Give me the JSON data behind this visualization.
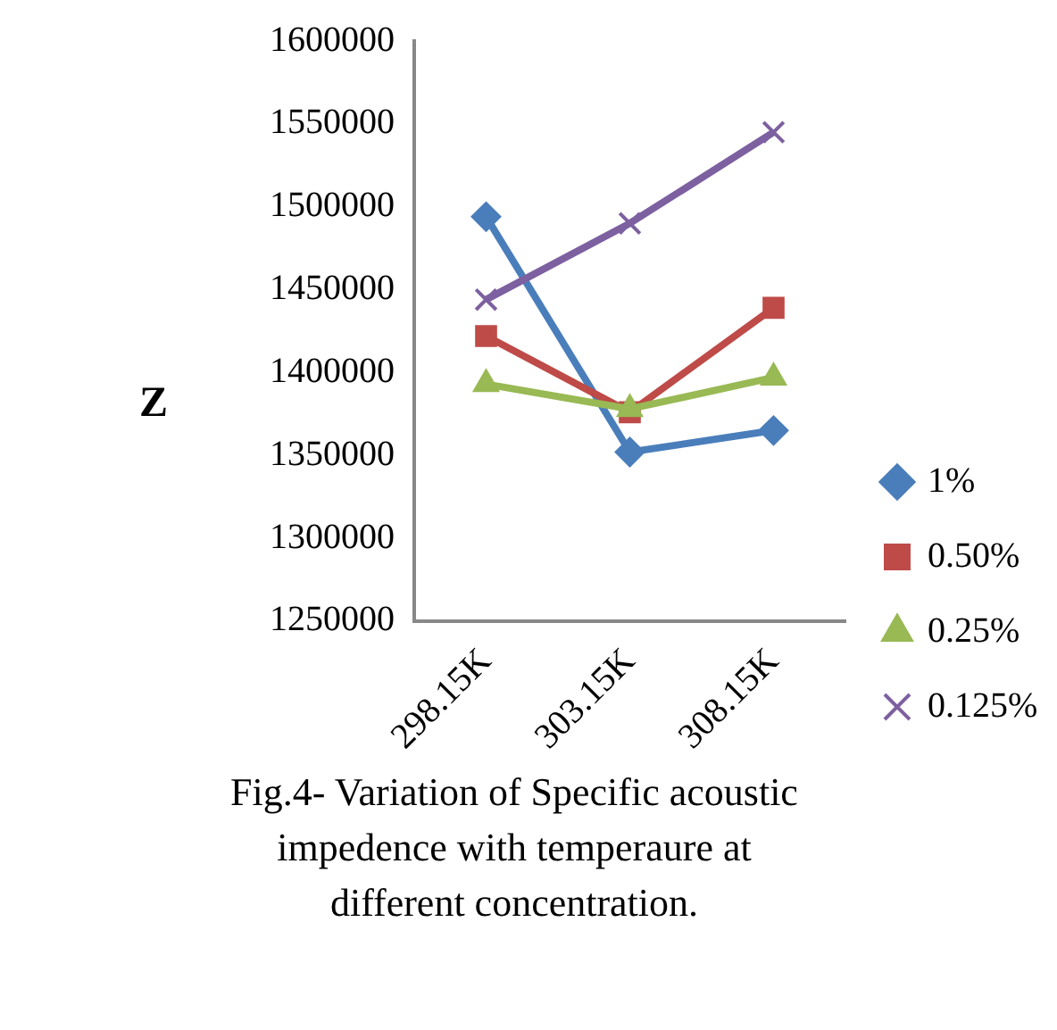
{
  "chart_data": {
    "type": "line",
    "title": "Fig.4- Variation of Specific acoustic impedence  with temperaure  at different concentration.",
    "ylabel": "Z",
    "categories": [
      "298.15K",
      "303.15K",
      "308.15K"
    ],
    "series": [
      {
        "name": "1%",
        "color": "#4a7ebb",
        "marker": "diamond",
        "values": [
          1494000,
          1352000,
          1365000
        ]
      },
      {
        "name": "0.50%",
        "color": "#be4b48",
        "marker": "square",
        "values": [
          1422000,
          1376000,
          1439000
        ]
      },
      {
        "name": "0.25%",
        "color": "#98b954",
        "marker": "triangle",
        "values": [
          1393000,
          1378000,
          1397000
        ]
      },
      {
        "name": "0.125%",
        "color": "#7d60a0",
        "marker": "cross",
        "values": [
          1444000,
          1490000,
          1545000
        ]
      }
    ],
    "ylim": [
      1250000,
      1600000
    ],
    "yticks": [
      1250000,
      1300000,
      1350000,
      1400000,
      1450000,
      1500000,
      1550000,
      1600000
    ],
    "grid": false,
    "legend": "right"
  }
}
